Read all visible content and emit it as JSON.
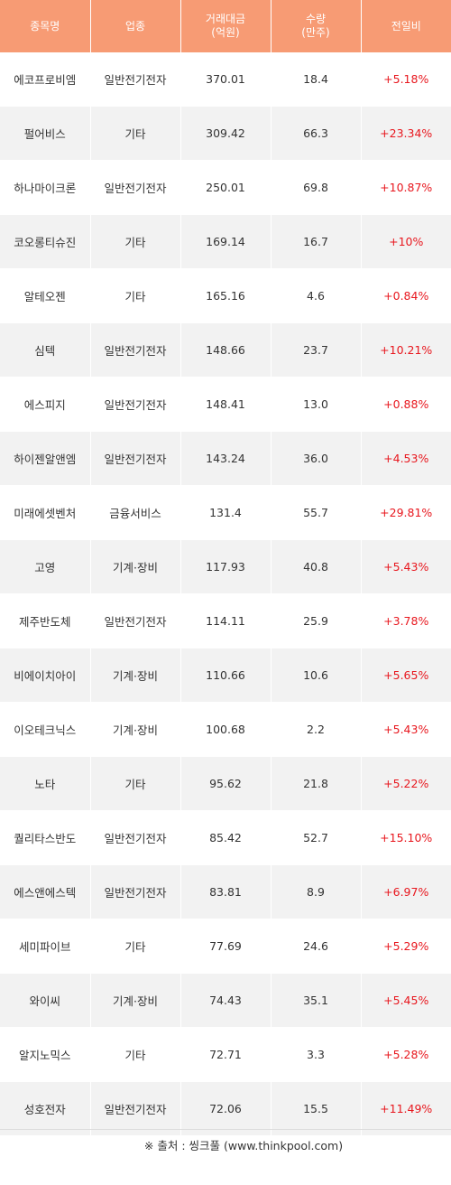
{
  "header": {
    "col1": "종목명",
    "col2": "업종",
    "col3_line1": "거래대금",
    "col3_line2": "(억원)",
    "col4_line1": "수량",
    "col4_line2": "(만주)",
    "col5": "전일비"
  },
  "rows": [
    {
      "name": "에코프로비엠",
      "sector": "일반전기전자",
      "amount": "370.01",
      "volume": "18.4",
      "change": "+5.18%"
    },
    {
      "name": "펄어비스",
      "sector": "기타",
      "amount": "309.42",
      "volume": "66.3",
      "change": "+23.34%"
    },
    {
      "name": "하나마이크론",
      "sector": "일반전기전자",
      "amount": "250.01",
      "volume": "69.8",
      "change": "+10.87%"
    },
    {
      "name": "코오롱티슈진",
      "sector": "기타",
      "amount": "169.14",
      "volume": "16.7",
      "change": "+10%"
    },
    {
      "name": "알테오젠",
      "sector": "기타",
      "amount": "165.16",
      "volume": "4.6",
      "change": "+0.84%"
    },
    {
      "name": "심텍",
      "sector": "일반전기전자",
      "amount": "148.66",
      "volume": "23.7",
      "change": "+10.21%"
    },
    {
      "name": "에스피지",
      "sector": "일반전기전자",
      "amount": "148.41",
      "volume": "13.0",
      "change": "+0.88%"
    },
    {
      "name": "하이젠알앤엠",
      "sector": "일반전기전자",
      "amount": "143.24",
      "volume": "36.0",
      "change": "+4.53%"
    },
    {
      "name": "미래에셋벤처",
      "sector": "금융서비스",
      "amount": "131.4",
      "volume": "55.7",
      "change": "+29.81%"
    },
    {
      "name": "고영",
      "sector": "기계·장비",
      "amount": "117.93",
      "volume": "40.8",
      "change": "+5.43%"
    },
    {
      "name": "제주반도체",
      "sector": "일반전기전자",
      "amount": "114.11",
      "volume": "25.9",
      "change": "+3.78%"
    },
    {
      "name": "비에이치아이",
      "sector": "기계·장비",
      "amount": "110.66",
      "volume": "10.6",
      "change": "+5.65%"
    },
    {
      "name": "이오테크닉스",
      "sector": "기계·장비",
      "amount": "100.68",
      "volume": "2.2",
      "change": "+5.43%"
    },
    {
      "name": "노타",
      "sector": "기타",
      "amount": "95.62",
      "volume": "21.8",
      "change": "+5.22%"
    },
    {
      "name": "퀄리타스반도",
      "sector": "일반전기전자",
      "amount": "85.42",
      "volume": "52.7",
      "change": "+15.10%"
    },
    {
      "name": "에스앤에스텍",
      "sector": "일반전기전자",
      "amount": "83.81",
      "volume": "8.9",
      "change": "+6.97%"
    },
    {
      "name": "세미파이브",
      "sector": "기타",
      "amount": "77.69",
      "volume": "24.6",
      "change": "+5.29%"
    },
    {
      "name": "와이씨",
      "sector": "기계·장비",
      "amount": "74.43",
      "volume": "35.1",
      "change": "+5.45%"
    },
    {
      "name": "알지노믹스",
      "sector": "기타",
      "amount": "72.71",
      "volume": "3.3",
      "change": "+5.28%"
    },
    {
      "name": "성호전자",
      "sector": "일반전기전자",
      "amount": "72.06",
      "volume": "15.5",
      "change": "+11.49%"
    }
  ],
  "source": {
    "mark": "※",
    "text": "출처 : 씽크풀 (www.thinkpool.com)"
  },
  "colors": {
    "header_bg": "#f79b74",
    "change_up": "#e8171e",
    "row_alt": "#f2f2f2"
  }
}
